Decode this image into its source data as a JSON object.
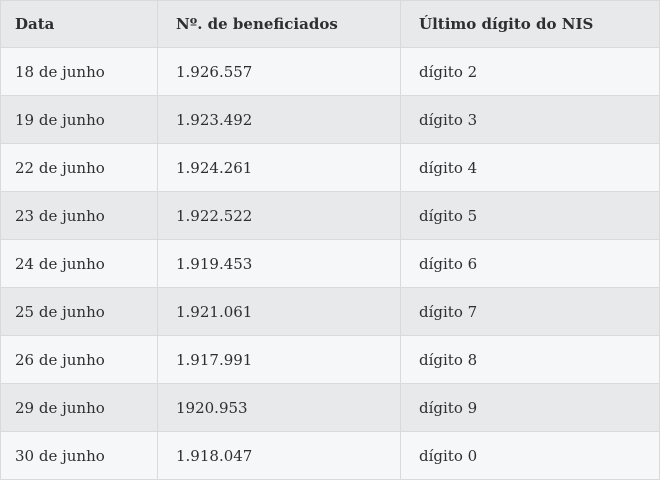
{
  "colors": {
    "header_bg": "#e8e9ea",
    "row_bg": "#f6f7f9",
    "row_alt_bg": "#e8e9ea",
    "border_color": "#d9dadc",
    "text_color": "#2f2f2f",
    "page_bg": "#ffffff"
  },
  "chart_data": {
    "type": "table",
    "title": "",
    "columns": [
      "Data",
      "Nº. de beneficiados",
      "Último dígito do NIS"
    ],
    "rows": [
      [
        "18 de junho",
        "1.926.557",
        "dígito 2"
      ],
      [
        "19 de junho",
        "1.923.492",
        "dígito 3"
      ],
      [
        "22 de junho",
        "1.924.261",
        "dígito 4"
      ],
      [
        "23 de junho",
        "1.922.522",
        "dígito 5"
      ],
      [
        "24 de junho",
        "1.919.453",
        "dígito 6"
      ],
      [
        "25 de junho",
        "1.921.061",
        "dígito 7"
      ],
      [
        "26 de junho",
        "1.917.991",
        "dígito 8"
      ],
      [
        "29 de junho",
        "1920.953",
        "dígito 9"
      ],
      [
        "30 de junho",
        "1.918.047",
        "dígito 0"
      ]
    ]
  }
}
